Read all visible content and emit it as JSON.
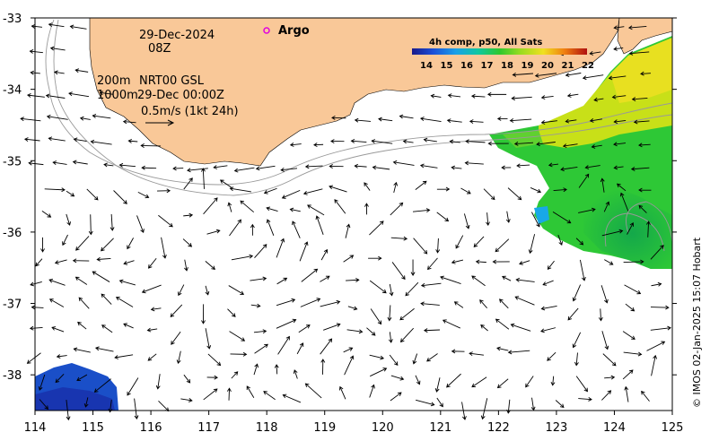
{
  "map": {
    "lon_range": [
      114,
      125
    ],
    "lat_range": [
      -38.5,
      -33
    ],
    "x_ticks": [
      "114",
      "115",
      "116",
      "117",
      "118",
      "119",
      "120",
      "121",
      "122",
      "123",
      "124",
      "125"
    ],
    "y_ticks": [
      "-33",
      "-34",
      "-35",
      "-36",
      "-37",
      "-38"
    ],
    "land_color": "#f9c898"
  },
  "annotations": {
    "date": "29-Dec-2024",
    "hour": "08Z",
    "isobath_200": "200m",
    "isobath_1000": "1000m",
    "product": "NRT00 GSL",
    "product_time": "29-Dec 00:00Z",
    "scale_label": "0.5m/s (1kt 24h)",
    "argo_label": "Argo",
    "argo_color": "#e000e0"
  },
  "colorbar": {
    "title": "4h comp, p50, All Sats",
    "ticks": [
      "14",
      "15",
      "16",
      "17",
      "18",
      "19",
      "20",
      "21",
      "22"
    ]
  },
  "credit": "© IMOS 02-Jan-2025 15:07 Hobart"
}
